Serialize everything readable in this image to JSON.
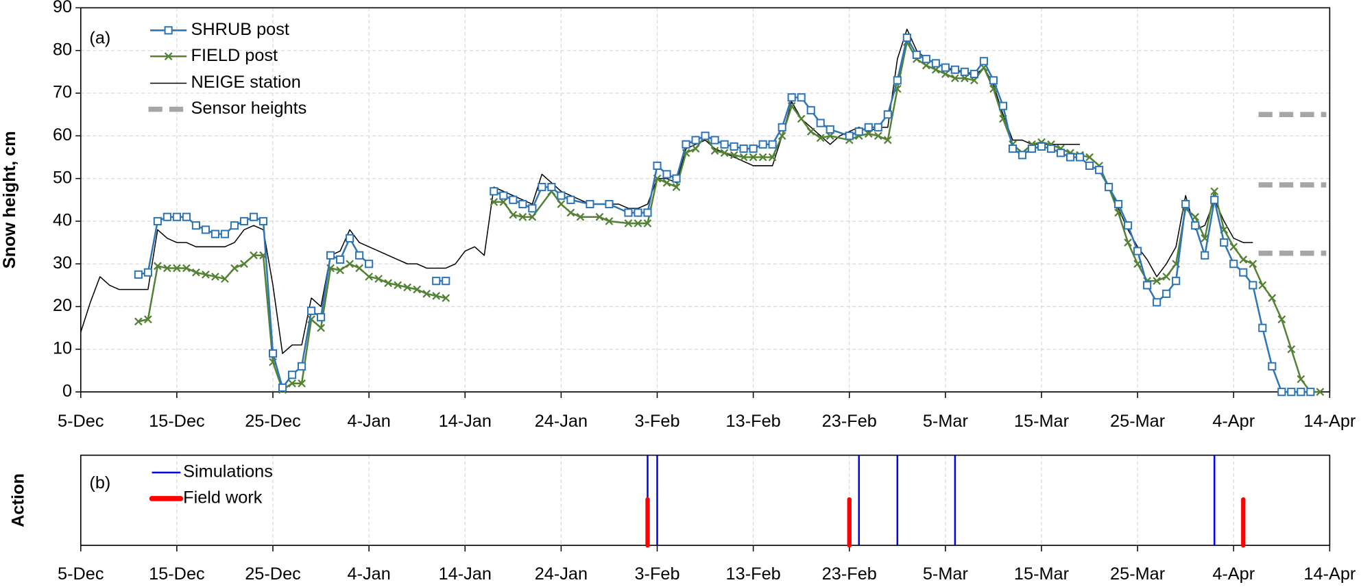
{
  "chart_data": [
    {
      "type": "line",
      "label": "(a)",
      "y_label": "Snow height, cm",
      "xlim": [
        "5-Dec",
        "14-Apr"
      ],
      "xticks": [
        "5-Dec",
        "15-Dec",
        "25-Dec",
        "4-Jan",
        "14-Jan",
        "24-Jan",
        "3-Feb",
        "13-Feb",
        "23-Feb",
        "5-Mar",
        "15-Mar",
        "25-Mar",
        "4-Apr",
        "14-Apr"
      ],
      "ylim": [
        0,
        90
      ],
      "yticks": [
        0,
        10,
        20,
        30,
        40,
        50,
        60,
        70,
        80,
        90
      ],
      "grid": true,
      "series": [
        {
          "name": "SHRUB post",
          "color": "#2e75b6",
          "marker": "square",
          "x": [
            "11-Dec",
            "12-Dec",
            "13-Dec",
            "14-Dec",
            "15-Dec",
            "16-Dec",
            "17-Dec",
            "18-Dec",
            "19-Dec",
            "20-Dec",
            "21-Dec",
            "22-Dec",
            "23-Dec",
            "24-Dec",
            "25-Dec",
            "26-Dec",
            "27-Dec",
            "28-Dec",
            "29-Dec",
            "30-Dec",
            "31-Dec",
            "1-Jan",
            "2-Jan",
            "3-Jan",
            "4-Jan",
            "8-Jan",
            "11-Jan",
            "12-Jan",
            "15-Jan",
            "17-Jan",
            "18-Jan",
            "19-Jan",
            "20-Jan",
            "21-Jan",
            "22-Jan",
            "23-Jan",
            "24-Jan",
            "25-Jan",
            "27-Jan",
            "29-Jan",
            "31-Jan",
            "1-Feb",
            "2-Feb",
            "3-Feb",
            "4-Feb",
            "5-Feb",
            "6-Feb",
            "7-Feb",
            "8-Feb",
            "9-Feb",
            "10-Feb",
            "11-Feb",
            "12-Feb",
            "13-Feb",
            "14-Feb",
            "15-Feb",
            "16-Feb",
            "17-Feb",
            "18-Feb",
            "19-Feb",
            "20-Feb",
            "21-Feb",
            "23-Feb",
            "24-Feb",
            "25-Feb",
            "26-Feb",
            "27-Feb",
            "28-Feb",
            "1-Mar",
            "2-Mar",
            "3-Mar",
            "4-Mar",
            "5-Mar",
            "6-Mar",
            "7-Mar",
            "8-Mar",
            "9-Mar",
            "10-Mar",
            "11-Mar",
            "12-Mar",
            "13-Mar",
            "14-Mar",
            "15-Mar",
            "16-Mar",
            "17-Mar",
            "18-Mar",
            "19-Mar",
            "20-Mar",
            "21-Mar",
            "22-Mar",
            "23-Mar",
            "24-Mar",
            "25-Mar",
            "26-Mar",
            "27-Mar",
            "28-Mar",
            "29-Mar",
            "30-Mar",
            "31-Mar",
            "1-Apr",
            "2-Apr",
            "3-Apr",
            "4-Apr",
            "5-Apr",
            "6-Apr",
            "7-Apr",
            "8-Apr",
            "9-Apr",
            "10-Apr",
            "11-Apr",
            "12-Apr"
          ],
          "values": [
            27.5,
            28,
            40,
            41,
            41,
            41,
            39,
            38,
            37,
            37,
            39,
            40,
            41,
            40,
            9,
            1,
            4,
            6,
            19,
            17.5,
            32,
            31,
            36,
            32,
            30,
            null,
            26,
            26,
            null,
            47,
            46,
            45,
            44,
            43,
            48,
            48,
            46,
            45,
            44,
            44,
            42,
            42,
            42,
            53,
            51,
            50,
            58,
            59,
            60,
            59,
            58,
            57.5,
            57,
            57,
            58,
            58,
            62,
            69,
            69,
            66,
            63,
            61.5,
            60,
            61,
            62,
            62,
            65,
            73,
            83,
            79,
            78,
            77,
            76,
            75.5,
            75,
            74.5,
            77.5,
            73,
            67,
            57,
            55.5,
            57,
            57.5,
            57,
            56,
            55,
            55,
            53,
            52,
            48,
            44,
            39,
            33,
            25,
            21,
            23,
            26,
            44,
            39,
            32,
            45,
            35,
            30,
            28,
            25,
            15,
            6,
            0,
            0,
            0,
            0
          ]
        },
        {
          "name": "FIELD post",
          "color": "#548235",
          "marker": "x",
          "x": [
            "11-Dec",
            "12-Dec",
            "13-Dec",
            "14-Dec",
            "15-Dec",
            "16-Dec",
            "17-Dec",
            "18-Dec",
            "19-Dec",
            "20-Dec",
            "21-Dec",
            "22-Dec",
            "23-Dec",
            "24-Dec",
            "25-Dec",
            "26-Dec",
            "27-Dec",
            "28-Dec",
            "29-Dec",
            "30-Dec",
            "31-Dec",
            "1-Jan",
            "2-Jan",
            "3-Jan",
            "4-Jan",
            "5-Jan",
            "6-Jan",
            "7-Jan",
            "8-Jan",
            "9-Jan",
            "10-Jan",
            "11-Jan",
            "12-Jan",
            "15-Jan",
            "17-Jan",
            "18-Jan",
            "19-Jan",
            "20-Jan",
            "21-Jan",
            "23-Jan",
            "24-Jan",
            "25-Jan",
            "26-Jan",
            "28-Jan",
            "29-Jan",
            "31-Jan",
            "1-Feb",
            "2-Feb",
            "3-Feb",
            "4-Feb",
            "5-Feb",
            "6-Feb",
            "7-Feb",
            "8-Feb",
            "9-Feb",
            "10-Feb",
            "11-Feb",
            "12-Feb",
            "13-Feb",
            "14-Feb",
            "15-Feb",
            "16-Feb",
            "17-Feb",
            "18-Feb",
            "19-Feb",
            "20-Feb",
            "21-Feb",
            "23-Feb",
            "24-Feb",
            "25-Feb",
            "26-Feb",
            "27-Feb",
            "28-Feb",
            "1-Mar",
            "2-Mar",
            "3-Mar",
            "4-Mar",
            "5-Mar",
            "6-Mar",
            "7-Mar",
            "8-Mar",
            "9-Mar",
            "10-Mar",
            "11-Mar",
            "12-Mar",
            "13-Mar",
            "14-Mar",
            "15-Mar",
            "16-Mar",
            "17-Mar",
            "18-Mar",
            "19-Mar",
            "20-Mar",
            "21-Mar",
            "22-Mar",
            "23-Mar",
            "24-Mar",
            "25-Mar",
            "26-Mar",
            "27-Mar",
            "28-Mar",
            "29-Mar",
            "30-Mar",
            "31-Mar",
            "1-Apr",
            "2-Apr",
            "3-Apr",
            "4-Apr",
            "5-Apr",
            "6-Apr",
            "7-Apr",
            "8-Apr",
            "9-Apr",
            "10-Apr",
            "11-Apr",
            "12-Apr",
            "13-Apr"
          ],
          "values": [
            16.5,
            17,
            29.5,
            29,
            29,
            29,
            28,
            27.5,
            27,
            26.5,
            29,
            30,
            32,
            32,
            7,
            0.5,
            2,
            2,
            17,
            15,
            29,
            28.5,
            30,
            29,
            27,
            26.5,
            25.5,
            25,
            24.5,
            24,
            23,
            22.5,
            22,
            null,
            44.5,
            44.5,
            41.5,
            41,
            41,
            47,
            44,
            42,
            41,
            41,
            40,
            39.5,
            39.5,
            39.5,
            50,
            49,
            48,
            56,
            57,
            60,
            56.5,
            56,
            55.5,
            55,
            55,
            55,
            55,
            60,
            67,
            64,
            61,
            59.5,
            60,
            59,
            60,
            60.5,
            60,
            59,
            71,
            82,
            78,
            76.5,
            75.5,
            74.5,
            73.5,
            73.5,
            73,
            76,
            71,
            64,
            58,
            56,
            58,
            58.5,
            58,
            57,
            56,
            55.5,
            55,
            53,
            48,
            42,
            35,
            30,
            26,
            26,
            27,
            30,
            43,
            41,
            36,
            47,
            38,
            34,
            31,
            30,
            25,
            22,
            17,
            10,
            3,
            0,
            0
          ]
        },
        {
          "name": "NEIGE station",
          "color": "#000000",
          "marker": null,
          "x": [
            "5-Dec",
            "6-Dec",
            "7-Dec",
            "8-Dec",
            "9-Dec",
            "10-Dec",
            "11-Dec",
            "12-Dec",
            "13-Dec",
            "14-Dec",
            "15-Dec",
            "16-Dec",
            "17-Dec",
            "18-Dec",
            "19-Dec",
            "20-Dec",
            "21-Dec",
            "22-Dec",
            "23-Dec",
            "24-Dec",
            "25-Dec",
            "26-Dec",
            "27-Dec",
            "28-Dec",
            "29-Dec",
            "30-Dec",
            "31-Dec",
            "1-Jan",
            "2-Jan",
            "3-Jan",
            "4-Jan",
            "5-Jan",
            "6-Jan",
            "7-Jan",
            "8-Jan",
            "9-Jan",
            "10-Jan",
            "11-Jan",
            "12-Jan",
            "13-Jan",
            "14-Jan",
            "15-Jan",
            "16-Jan",
            "17-Jan",
            "18-Jan",
            "19-Jan",
            "20-Jan",
            "21-Jan",
            "22-Jan",
            "23-Jan",
            "24-Jan",
            "25-Jan",
            "26-Jan",
            "27-Jan",
            "28-Jan",
            "29-Jan",
            "30-Jan",
            "31-Jan",
            "1-Feb",
            "2-Feb",
            "3-Feb",
            "4-Feb",
            "5-Feb",
            "6-Feb",
            "7-Feb",
            "8-Feb",
            "9-Feb",
            "10-Feb",
            "11-Feb",
            "12-Feb",
            "13-Feb",
            "14-Feb",
            "15-Feb",
            "16-Feb",
            "17-Feb",
            "18-Feb",
            "19-Feb",
            "20-Feb",
            "21-Feb",
            "22-Feb",
            "23-Feb",
            "24-Feb",
            "25-Feb",
            "26-Feb",
            "27-Feb",
            "28-Feb",
            "1-Mar",
            "2-Mar",
            "3-Mar",
            "4-Mar",
            "5-Mar",
            "6-Mar",
            "7-Mar",
            "8-Mar",
            "9-Mar",
            "10-Mar",
            "11-Mar",
            "12-Mar",
            "13-Mar",
            "14-Mar",
            "15-Mar",
            "16-Mar",
            "17-Mar",
            "18-Mar",
            "19-Mar",
            "20-Mar",
            "21-Mar",
            "22-Mar",
            "23-Mar",
            "24-Mar",
            "25-Mar",
            "26-Mar",
            "27-Mar",
            "28-Mar",
            "29-Mar",
            "30-Mar",
            "31-Mar",
            "1-Apr",
            "2-Apr",
            "3-Apr",
            "4-Apr",
            "5-Apr",
            "6-Apr"
          ],
          "values": [
            14,
            21,
            27,
            25,
            24,
            24,
            24,
            24,
            38,
            36,
            35,
            35,
            34,
            34,
            34,
            34,
            35,
            38,
            39,
            38,
            25,
            9,
            11,
            11,
            22,
            20,
            32,
            33,
            38,
            35,
            34,
            33,
            32,
            31,
            30,
            30,
            29,
            29,
            29,
            30,
            33,
            34,
            32,
            48,
            47,
            46,
            45,
            44,
            51,
            49,
            47,
            46,
            45,
            44,
            44,
            44,
            44,
            43,
            43,
            44,
            50,
            50,
            49,
            57,
            58,
            59,
            57,
            56,
            55,
            54,
            53,
            53,
            53,
            60,
            68,
            64,
            62,
            60,
            58,
            60,
            61,
            62,
            61,
            62,
            62,
            78,
            85,
            80,
            78,
            77,
            76,
            75,
            75,
            74,
            76,
            72,
            65,
            59,
            59,
            58,
            58,
            58,
            58,
            58,
            58,
            null,
            53,
            48,
            43,
            38,
            34,
            31,
            27,
            30,
            34,
            46,
            38,
            39,
            45,
            40,
            36,
            35,
            35
          ]
        }
      ],
      "sensor_heights": {
        "name": "Sensor heights",
        "color": "#a6a6a6",
        "values": [
          65,
          48.5,
          32.5
        ]
      }
    },
    {
      "type": "vline",
      "label": "(b)",
      "y_label": "Action",
      "xlim": [
        "5-Dec",
        "14-Apr"
      ],
      "xticks": [
        "5-Dec",
        "15-Dec",
        "25-Dec",
        "4-Jan",
        "14-Jan",
        "24-Jan",
        "3-Feb",
        "13-Feb",
        "23-Feb",
        "5-Mar",
        "15-Mar",
        "25-Mar",
        "4-Apr",
        "14-Apr"
      ],
      "grid": true,
      "series": [
        {
          "name": "Simulations",
          "color": "#0000ff",
          "x": [
            "2-Feb",
            "3-Feb",
            "24-Feb",
            "28-Feb",
            "6-Mar",
            "2-Apr"
          ]
        },
        {
          "name": "Field work",
          "color": "#ff0000",
          "x": [
            "2-Feb",
            "23-Feb",
            "5-Apr"
          ]
        }
      ]
    }
  ]
}
